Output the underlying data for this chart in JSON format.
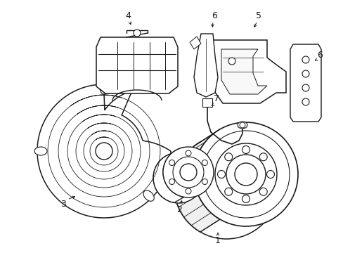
{
  "background_color": "#ffffff",
  "line_color": "#1a1a1a",
  "line_width": 1.0,
  "label_fontsize": 9,
  "fig_width": 4.89,
  "fig_height": 3.6,
  "dpi": 100
}
